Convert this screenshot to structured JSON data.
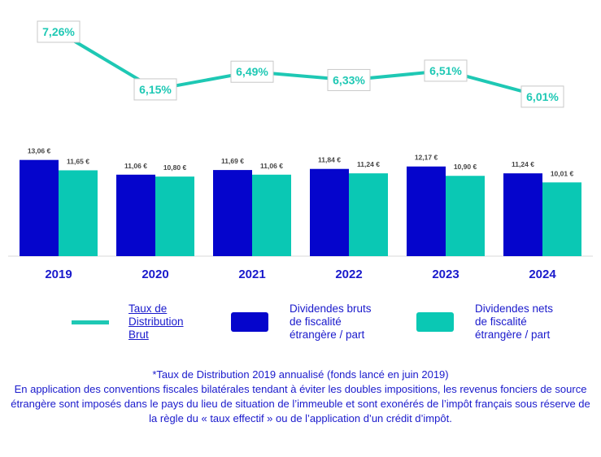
{
  "colors": {
    "brut": "#0505cc",
    "net": "#0ac8b4",
    "rate": "#1ec8b4",
    "text": "#1a1acc",
    "label": "#444444"
  },
  "chart_data": {
    "type": "bar",
    "categories": [
      "2019",
      "2020",
      "2021",
      "2022",
      "2023",
      "2024"
    ],
    "series": [
      {
        "name": "Dividendes bruts de fiscalité étrangère / part",
        "values": [
          13.06,
          11.06,
          11.69,
          11.84,
          12.17,
          11.24
        ],
        "labels": [
          "13,06 €",
          "11,06 €",
          "11,69 €",
          "11,84 €",
          "12,17 €",
          "11,24 €"
        ]
      },
      {
        "name": "Dividendes nets de fiscalité étrangère / part",
        "values": [
          11.65,
          10.8,
          11.06,
          11.24,
          10.9,
          10.01
        ],
        "labels": [
          "11,65 €",
          "10,80 €",
          "11,06 €",
          "11,24 €",
          "10,90 €",
          "10,01 €"
        ]
      }
    ],
    "line_series": {
      "name": "Taux de Distribution Brut",
      "type": "line",
      "values": [
        7.26,
        6.15,
        6.49,
        6.33,
        6.51,
        6.01
      ],
      "labels": [
        "7,26%",
        "6,15%",
        "6,49%",
        "6,33%",
        "6,51%",
        "6,01%"
      ]
    }
  },
  "legend": {
    "rate": "Taux de\nDistribution\nBrut",
    "brut": "Dividendes bruts\nde fiscalité\nétrangère / part",
    "net": "Dividendes nets\nde fiscalité\nétrangère / part"
  },
  "notes": {
    "line1": "*Taux de Distribution 2019 annualisé (fonds lancé en juin 2019)",
    "line2": "En application des conventions fiscales bilatérales tendant à éviter les doubles impositions, les revenus fonciers de source étrangère sont imposés dans le pays du lieu de situation de l’immeuble et sont exonérés de l’impôt français sous réserve de la règle du « taux effectif » ou de l’application d’un crédit d’impôt."
  }
}
